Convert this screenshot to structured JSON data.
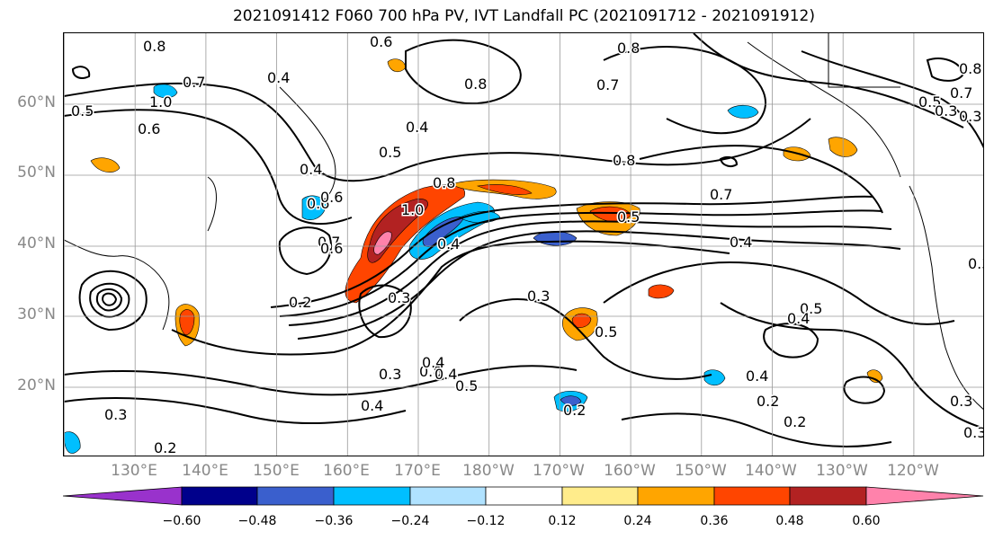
{
  "title": "2021091412 F060 700 hPa PV, IVT Landfall PC (2021091712 - 2021091912)",
  "lat_labels": [
    "60°N",
    "50°N",
    "40°N",
    "30°N",
    "20°N"
  ],
  "lon_labels": [
    "130°E",
    "140°E",
    "150°E",
    "160°E",
    "170°E",
    "180°W",
    "170°W",
    "160°W",
    "150°W",
    "140°W",
    "130°W",
    "120°W"
  ],
  "contour_labels": [
    "0.6",
    "0.8",
    "0.4",
    "0.7",
    "0.8",
    "0.8",
    "0.7",
    "0.6",
    "0.5",
    "0.4",
    "0.8",
    "0.7",
    "0.4",
    "0.5",
    "1.0",
    "0.5",
    "0.6",
    "0.5",
    "0.4",
    "0.4",
    "0.6",
    "0.8",
    "1.0",
    "0.7",
    "0.3",
    "0.3",
    "0.5",
    "0.8",
    "0.7",
    "0.3",
    "0.6",
    "0.3",
    "0.4",
    "0.5",
    "0.4",
    "0.3",
    "0.4",
    "0.4",
    "0.2",
    "0.2",
    "0.2",
    "0.4",
    "0.2",
    "0.5",
    "0.3",
    "0.3",
    "0.3",
    "0.2",
    "0.3",
    "0.8"
  ],
  "colorbar": {
    "ticks": [
      "−0.60",
      "−0.48",
      "−0.36",
      "−0.24",
      "−0.12",
      "0.12",
      "0.24",
      "0.36",
      "0.48",
      "0.60"
    ],
    "colors": [
      "#9932cc",
      "#00008b",
      "#3a5fcd",
      "#00bfff",
      "#b0e2ff",
      "#ffffff",
      "#ffec8b",
      "#ffa500",
      "#ff4500",
      "#b22222",
      "#ff82ab"
    ]
  },
  "colors": {
    "grid": "#999999",
    "contour": "#000000",
    "axis_label": "#888888"
  }
}
